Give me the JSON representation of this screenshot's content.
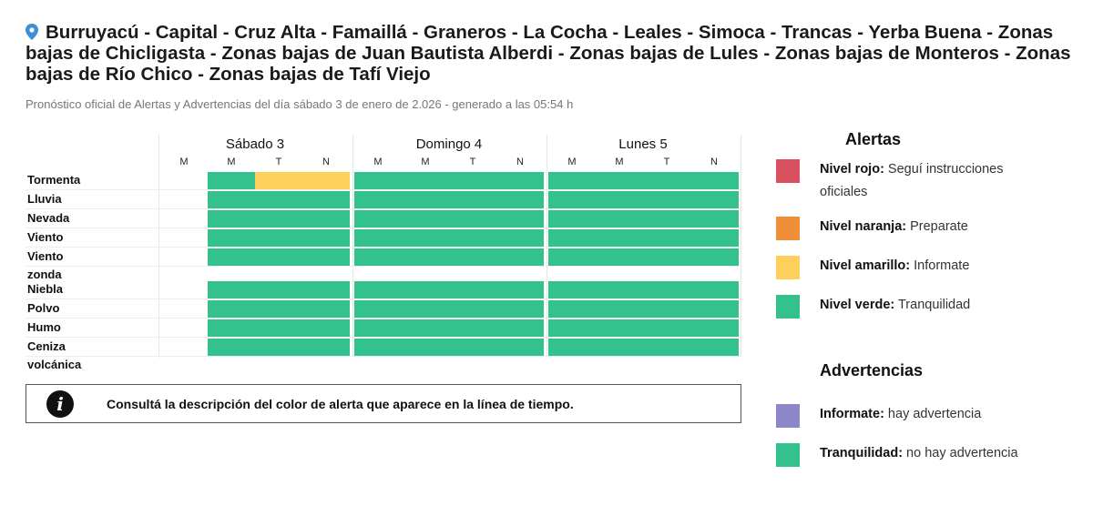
{
  "header": {
    "title": "Burruyacú - Capital - Cruz Alta - Famaillá - Graneros - La Cocha - Leales - Simoca - Trancas - Yerba Buena - Zonas bajas de Chicligasta - Zonas bajas de Juan Bautista Alberdi - Zonas bajas de Lules - Zonas bajas de Monteros - Zonas bajas de Río Chico - Zonas bajas de Tafí Viejo",
    "icon": "map-pin-icon",
    "subtitle": "Pronóstico oficial de Alertas y Advertencias del día sábado 3 de enero de 2.026 - generado a las 05:54 h"
  },
  "timeline": {
    "days": [
      "Sábado 3",
      "Domingo 4",
      "Lunes 5"
    ],
    "periods": [
      "M",
      "M",
      "T",
      "N",
      "M",
      "M",
      "T",
      "N",
      "M",
      "M",
      "T",
      "N"
    ],
    "group1": [
      {
        "label": "Tormenta",
        "levels": [
          null,
          "verde",
          "amarillo",
          "amarillo",
          "verde",
          "verde",
          "verde",
          "verde",
          "verde",
          "verde",
          "verde",
          "verde"
        ]
      },
      {
        "label": "Lluvia",
        "levels": [
          null,
          "verde",
          "verde",
          "verde",
          "verde",
          "verde",
          "verde",
          "verde",
          "verde",
          "verde",
          "verde",
          "verde"
        ]
      },
      {
        "label": "Nevada",
        "levels": [
          null,
          "verde",
          "verde",
          "verde",
          "verde",
          "verde",
          "verde",
          "verde",
          "verde",
          "verde",
          "verde",
          "verde"
        ]
      },
      {
        "label": "Viento",
        "levels": [
          null,
          "verde",
          "verde",
          "verde",
          "verde",
          "verde",
          "verde",
          "verde",
          "verde",
          "verde",
          "verde",
          "verde"
        ]
      },
      {
        "label": "Viento zonda",
        "levels": [
          null,
          "verde",
          "verde",
          "verde",
          "verde",
          "verde",
          "verde",
          "verde",
          "verde",
          "verde",
          "verde",
          "verde"
        ]
      }
    ],
    "group2": [
      {
        "label": "Niebla",
        "levels": [
          null,
          "verde",
          "verde",
          "verde",
          "verde",
          "verde",
          "verde",
          "verde",
          "verde",
          "verde",
          "verde",
          "verde"
        ]
      },
      {
        "label": "Polvo",
        "levels": [
          null,
          "verde",
          "verde",
          "verde",
          "verde",
          "verde",
          "verde",
          "verde",
          "verde",
          "verde",
          "verde",
          "verde"
        ]
      },
      {
        "label": "Humo",
        "levels": [
          null,
          "verde",
          "verde",
          "verde",
          "verde",
          "verde",
          "verde",
          "verde",
          "verde",
          "verde",
          "verde",
          "verde"
        ]
      },
      {
        "label": "Ceniza volcánica",
        "levels": [
          null,
          "verde",
          "verde",
          "verde",
          "verde",
          "verde",
          "verde",
          "verde",
          "verde",
          "verde",
          "verde",
          "verde"
        ]
      }
    ]
  },
  "colors": {
    "rojo": "#d9505f",
    "naranja": "#f08f3a",
    "amarillo": "#fcd05a",
    "verde": "#33c28e",
    "violeta": "#8c87c9"
  },
  "info": {
    "icon": "info-icon",
    "text": "Consultá la descripción del color de alerta que aparece en la línea de tiempo."
  },
  "legend": {
    "alertas_title": "Alertas",
    "alertas": [
      {
        "bold": "Nivel rojo:",
        "text": " Seguí instrucciones oficiales",
        "color": "rojo"
      },
      {
        "bold": "Nivel naranja:",
        "text": " Preparate",
        "color": "naranja"
      },
      {
        "bold": "Nivel amarillo:",
        "text": " Informate",
        "color": "amarillo"
      },
      {
        "bold": "Nivel verde:",
        "text": " Tranquilidad",
        "color": "verde"
      }
    ],
    "advertencias_title": "Advertencias",
    "advertencias": [
      {
        "bold": "Informate:",
        "text": " hay advertencia",
        "color": "violeta"
      },
      {
        "bold": "Tranquilidad:",
        "text": " no hay advertencia",
        "color": "verde"
      }
    ]
  }
}
